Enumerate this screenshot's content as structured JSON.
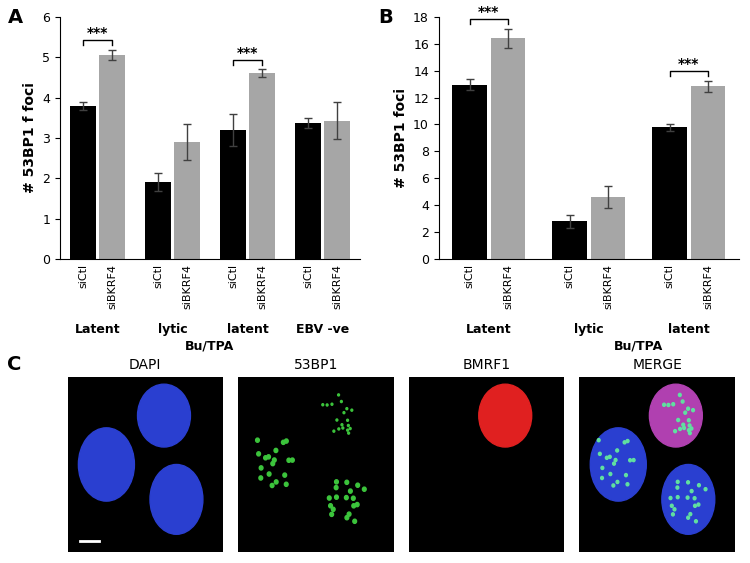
{
  "chart_data": [
    {
      "type": "bar",
      "panel": "A",
      "y_label": "# 53BP1 f foci",
      "categories": [
        "Latent",
        "lytic",
        "latent",
        "EBV -ve"
      ],
      "series": [
        {
          "name": "siCtl",
          "color": "#000000",
          "values": [
            3.8,
            1.9,
            3.2,
            3.37
          ],
          "errors": [
            0.1,
            0.22,
            0.4,
            0.13
          ]
        },
        {
          "name": "siBKRF4",
          "color": "#a6a6a6",
          "values": [
            5.05,
            2.9,
            4.6,
            3.43
          ],
          "errors": [
            0.13,
            0.45,
            0.1,
            0.45
          ]
        }
      ],
      "supergroups": [
        {
          "label": "Bu/TPA",
          "groups": [
            "lytic",
            "latent"
          ]
        }
      ],
      "significance": [
        {
          "group": "Latent",
          "label": "***"
        },
        {
          "group": "latent",
          "label": "***"
        }
      ],
      "ylim": [
        0,
        6
      ],
      "yticks": [
        0,
        1,
        2,
        3,
        4,
        5,
        6
      ]
    },
    {
      "type": "bar",
      "panel": "B",
      "y_label": "# 53BP1 foci",
      "categories": [
        "Latent",
        "lytic",
        "latent"
      ],
      "series": [
        {
          "name": "siCtl",
          "color": "#000000",
          "values": [
            12.95,
            2.8,
            9.8
          ],
          "errors": [
            0.4,
            0.5,
            0.25
          ]
        },
        {
          "name": "siBKRF4",
          "color": "#a6a6a6",
          "values": [
            16.4,
            4.6,
            12.85
          ],
          "errors": [
            0.7,
            0.8,
            0.4
          ]
        }
      ],
      "supergroups": [
        {
          "label": "Bu/TPA",
          "groups": [
            "lytic",
            "latent"
          ]
        }
      ],
      "significance": [
        {
          "group": "Latent",
          "label": "***"
        },
        {
          "group": "latent",
          "label": "***"
        }
      ],
      "ylim": [
        0,
        18
      ],
      "yticks": [
        0,
        2,
        4,
        6,
        8,
        10,
        12,
        14,
        16,
        18
      ]
    }
  ],
  "panel_c": {
    "panel": "C",
    "channels": [
      "DAPI",
      "53BP1",
      "BMRF1",
      "MERGE"
    ]
  }
}
